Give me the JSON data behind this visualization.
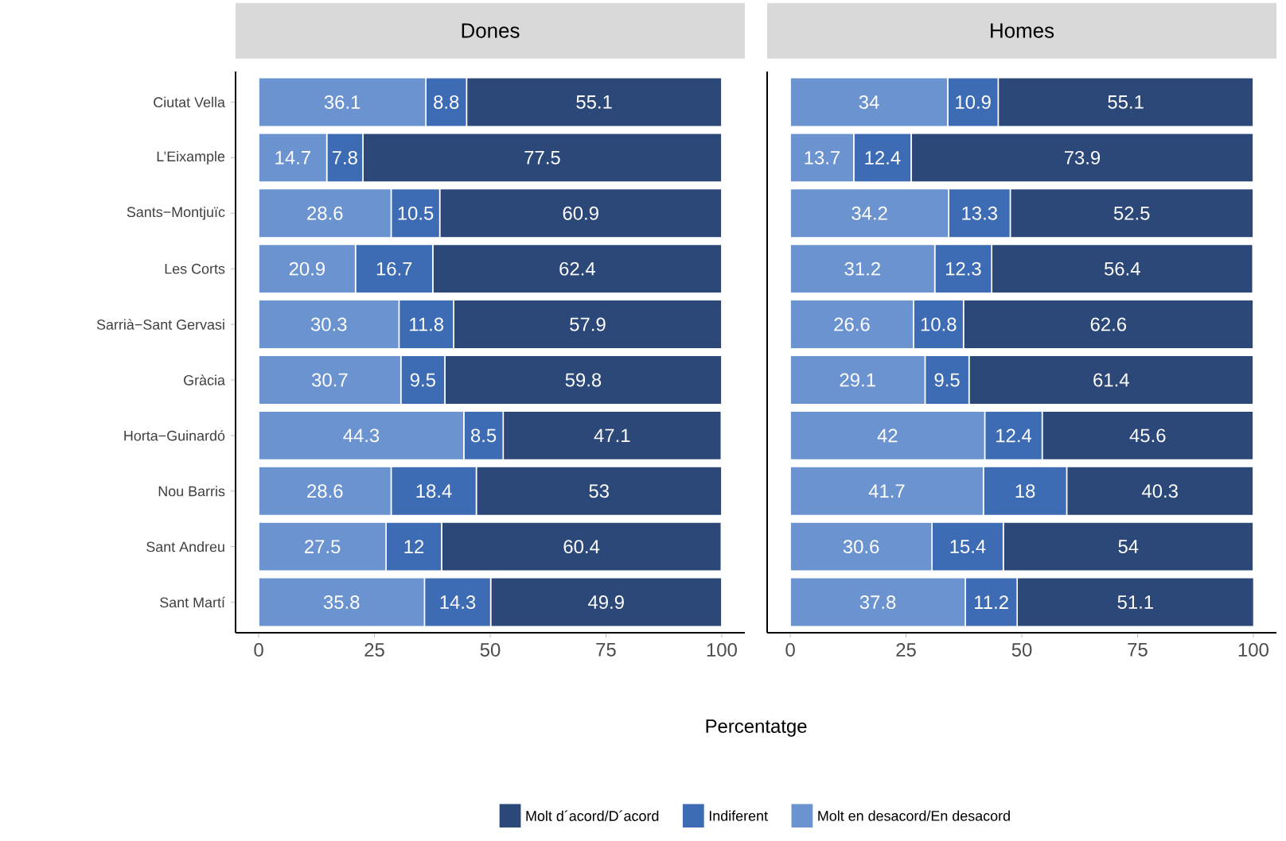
{
  "chart_data": [
    {
      "type": "bar",
      "orientation": "horizontal",
      "stacked": true,
      "title": "Dones",
      "xlabel": "Percentatge",
      "categories": [
        "Ciutat Vella",
        "L’Eixample",
        "Sants−Montjuïc",
        "Les Corts",
        "Sarrià−Sant Gervasi",
        "Gràcia",
        "Horta−Guinardó",
        "Nou Barris",
        "Sant Andreu",
        "Sant Martí"
      ],
      "series": [
        {
          "name": "Molt en desacord/En desacord",
          "color": "#6b93d0",
          "values": [
            36.1,
            14.7,
            28.6,
            20.9,
            30.3,
            30.7,
            44.3,
            28.6,
            27.5,
            35.8
          ]
        },
        {
          "name": "Indiferent",
          "color": "#3d6cb4",
          "values": [
            8.8,
            7.8,
            10.5,
            16.7,
            11.8,
            9.5,
            8.5,
            18.4,
            12,
            14.3
          ]
        },
        {
          "name": "Molt d´acord/D´acord",
          "color": "#2c4879",
          "values": [
            55.1,
            77.5,
            60.9,
            62.4,
            57.9,
            59.8,
            47.1,
            53,
            60.4,
            49.9
          ]
        }
      ],
      "xlim": [
        -5,
        105
      ],
      "xticks": [
        0,
        25,
        50,
        75,
        100
      ],
      "data_labels": true,
      "legend": "bottom"
    },
    {
      "type": "bar",
      "orientation": "horizontal",
      "stacked": true,
      "title": "Homes",
      "categories": [
        null,
        null,
        null,
        null,
        null,
        null,
        null,
        null,
        null,
        null
      ],
      "series": [
        {
          "color": "#6b93d0",
          "values": [
            34,
            13.7,
            34.2,
            31.2,
            26.6,
            29.1,
            42,
            41.7,
            30.6,
            37.8
          ]
        },
        {
          "color": "#3d6cb4",
          "values": [
            10.9,
            12.4,
            13.3,
            12.3,
            10.8,
            9.5,
            12.4,
            18,
            15.4,
            11.2
          ]
        },
        {
          "color": "#2c4879",
          "values": [
            55.1,
            73.9,
            52.5,
            56.4,
            62.6,
            61.4,
            45.6,
            40.3,
            54,
            51.1
          ]
        }
      ],
      "xlim": [
        -5,
        105
      ],
      "xticks": [
        0,
        25,
        50,
        75,
        100
      ],
      "data_labels": true,
      "tick_labels": "x"
    }
  ]
}
